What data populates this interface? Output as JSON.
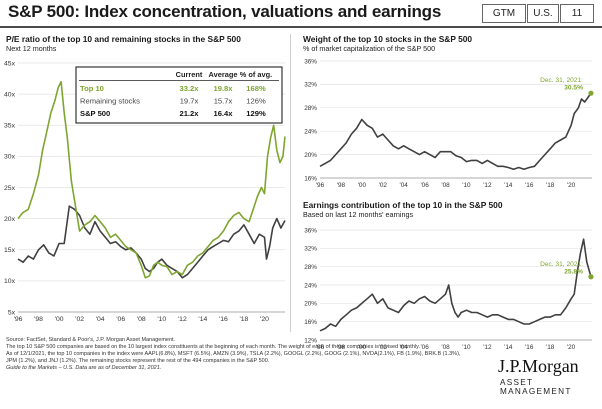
{
  "header": {
    "title": "S&P 500: Index concentration, valuations and earnings",
    "tags": [
      "GTM",
      "U.S.",
      "11"
    ]
  },
  "footnotes": [
    "Source: FactSet, Standard & Poor's, J.P. Morgan Asset Management.",
    "The top 10 S&P 500 companies are based on the 10 largest index constituents at the beginning of each month. The weight of each of these companies is revised monthly.",
    "As of 12/1/2021, the top 10 companies in the index were AAPL(6.8%), MSFT (6.5%), AMZN (3.9%), TSLA (2.2%), GOOGL (2.2%), GOOG (2.1%), NVDA(2.1%), FB (1.9%), BRK.B (1.3%),",
    "JPM (1.2%), and JNJ (1.2%). The remaining stocks represent the rest of the 494 companies in the S&P 500.",
    "Guide to the Markets – U.S. Data are as of December 31, 2021."
  ],
  "brand": {
    "name": "J.P.Morgan",
    "sub": "ASSET MANAGEMENT"
  },
  "colors": {
    "green": "#7ea62f",
    "gray": "#404040",
    "title": "#1a1a1a"
  },
  "chart_data": [
    {
      "type": "line",
      "title": "P/E ratio of the top 10 and remaining stocks in the S&P 500",
      "subtitle": "Next 12 months",
      "xlabel": "",
      "ylabel": "",
      "xlim": [
        1996,
        2022
      ],
      "ylim": [
        5,
        45
      ],
      "yticks": [
        "5x",
        "10x",
        "15x",
        "20x",
        "25x",
        "30x",
        "35x",
        "40x",
        "45x"
      ],
      "xticks": [
        "'96",
        "'98",
        "'00",
        "'02",
        "'04",
        "'06",
        "'08",
        "'10",
        "'12",
        "'14",
        "'16",
        "'18",
        "'20"
      ],
      "series": [
        {
          "name": "Top 10",
          "color": "#7ea62f",
          "x": [
            1996,
            1996.5,
            1997,
            1997.5,
            1998,
            1998.4,
            1998.8,
            1999.2,
            1999.6,
            1999.9,
            2000.2,
            2000.5,
            2000.8,
            2001.2,
            2001.6,
            2002,
            2002.5,
            2003,
            2003.5,
            2004,
            2004.5,
            2005,
            2005.5,
            2006,
            2006.5,
            2007,
            2007.5,
            2008,
            2008.4,
            2008.8,
            2009.2,
            2009.6,
            2010,
            2010.5,
            2011,
            2011.5,
            2012,
            2012.5,
            2013,
            2013.5,
            2014,
            2014.5,
            2015,
            2015.5,
            2016,
            2016.5,
            2017,
            2017.5,
            2018,
            2018.5,
            2019,
            2019.3,
            2019.7,
            2020,
            2020.3,
            2020.6,
            2020.9,
            2021.2,
            2021.5,
            2021.8,
            2022
          ],
          "y": [
            20,
            21,
            21.5,
            24,
            27,
            31,
            34,
            37,
            39,
            41,
            42,
            37,
            33,
            26,
            22,
            18,
            19,
            19.5,
            20.5,
            19.5,
            18.5,
            17,
            17.5,
            16.5,
            15.5,
            15,
            14.5,
            12.5,
            10.5,
            10.8,
            12.5,
            13,
            12.5,
            12.3,
            11,
            11.5,
            11,
            12.5,
            13,
            14,
            14.5,
            15.5,
            16.5,
            17,
            18,
            19.5,
            20.5,
            21,
            20,
            19.5,
            22,
            23.5,
            25,
            24,
            30,
            33,
            35,
            31,
            29,
            30,
            33.2
          ]
        },
        {
          "name": "Remaining stocks",
          "color": "#404040",
          "x": [
            1996,
            1996.5,
            1997,
            1997.5,
            1998,
            1998.5,
            1999,
            1999.5,
            2000,
            2000.5,
            2001,
            2001.5,
            2002,
            2002.5,
            2003,
            2003.5,
            2004,
            2004.5,
            2005,
            2005.5,
            2006,
            2006.5,
            2007,
            2007.5,
            2008,
            2008.4,
            2008.8,
            2009.2,
            2009.6,
            2010,
            2010.5,
            2011,
            2011.5,
            2012,
            2012.5,
            2013,
            2013.5,
            2014,
            2014.5,
            2015,
            2015.5,
            2016,
            2016.5,
            2017,
            2017.5,
            2018,
            2018.5,
            2019,
            2019.5,
            2020,
            2020.2,
            2020.5,
            2020.8,
            2021.2,
            2021.6,
            2022
          ],
          "y": [
            13.5,
            13,
            14,
            13.5,
            15,
            15.8,
            14.5,
            14,
            16,
            16,
            22,
            21.5,
            20.5,
            18.5,
            17.5,
            19.5,
            18,
            17,
            16,
            16.3,
            15.5,
            15,
            15.3,
            14.5,
            13.5,
            12,
            11.5,
            12,
            13,
            13.5,
            12.5,
            12,
            11.5,
            10.5,
            11,
            12,
            13,
            14,
            15,
            15.5,
            16,
            16.5,
            16.3,
            17.5,
            18,
            19,
            17.5,
            16,
            17.5,
            17,
            13.5,
            15.5,
            18.5,
            20,
            18.5,
            19.7
          ]
        }
      ],
      "table": {
        "headers": [
          "",
          "Current",
          "Average",
          "% of avg."
        ],
        "rows": [
          {
            "label": "Top 10",
            "current": "33.2x",
            "average": "19.8x",
            "pct": "168%"
          },
          {
            "label": "Remaining stocks",
            "current": "19.7x",
            "average": "15.7x",
            "pct": "126%"
          },
          {
            "label": "S&P 500",
            "current": "21.2x",
            "average": "16.4x",
            "pct": "129%"
          }
        ]
      }
    },
    {
      "type": "line",
      "title": "Weight of the top 10 stocks in the S&P 500",
      "subtitle": "% of market capitalization of the S&P 500",
      "xlabel": "",
      "ylabel": "",
      "xlim": [
        1996,
        2022
      ],
      "ylim": [
        16,
        36
      ],
      "yticks": [
        "16%",
        "20%",
        "24%",
        "28%",
        "32%",
        "36%"
      ],
      "xticks": [
        "'96",
        "'98",
        "'00",
        "'02",
        "'04",
        "'06",
        "'08",
        "'10",
        "'12",
        "'14",
        "'16",
        "'18",
        "'20"
      ],
      "annotation": {
        "label": "Dec. 31, 2021:",
        "value": "30.5%",
        "x": 2021.9,
        "y": 30.5
      },
      "series": [
        {
          "name": "",
          "color": "#404040",
          "x": [
            1996,
            1996.5,
            1997,
            1997.5,
            1998,
            1998.5,
            1999,
            1999.5,
            2000,
            2000.5,
            2001,
            2001.5,
            2002,
            2002.5,
            2003,
            2003.5,
            2004,
            2004.5,
            2005,
            2005.5,
            2006,
            2006.5,
            2007,
            2007.5,
            2008,
            2008.5,
            2009,
            2009.5,
            2010,
            2010.5,
            2011,
            2011.5,
            2012,
            2012.5,
            2013,
            2013.5,
            2014,
            2014.5,
            2015,
            2015.5,
            2016,
            2016.5,
            2017,
            2017.5,
            2018,
            2018.5,
            2019,
            2019.5,
            2020,
            2020.3,
            2020.7,
            2021,
            2021.3,
            2021.7,
            2021.9
          ],
          "y": [
            18,
            18.5,
            19,
            20,
            21,
            22,
            23.5,
            24.5,
            26,
            25,
            24.5,
            23,
            23.5,
            22.5,
            21.5,
            21,
            21.5,
            21,
            20.5,
            20,
            20.5,
            20,
            19.5,
            20.5,
            20.5,
            20.5,
            19.8,
            19.5,
            18.8,
            19,
            19,
            18.5,
            19,
            18.5,
            18,
            18,
            17.8,
            17.5,
            17.8,
            17.5,
            17.8,
            18,
            19,
            20,
            21,
            22,
            22.5,
            23,
            25,
            27,
            28,
            29.5,
            29,
            30,
            30.5
          ]
        }
      ]
    },
    {
      "type": "line",
      "title": "Earnings contribution of the top 10 in the S&P 500",
      "subtitle": "Based on last 12 months' earnings",
      "xlabel": "",
      "ylabel": "",
      "xlim": [
        1996,
        2022
      ],
      "ylim": [
        12,
        36
      ],
      "yticks": [
        "12%",
        "16%",
        "20%",
        "24%",
        "28%",
        "32%",
        "36%"
      ],
      "xticks": [
        "'96",
        "'98",
        "'00",
        "'02",
        "'04",
        "'06",
        "'08",
        "'10",
        "'12",
        "'14",
        "'16",
        "'18",
        "'20"
      ],
      "annotation": {
        "label": "Dec. 31, 2021:",
        "value": "25.8%",
        "x": 2021.9,
        "y": 25.8
      },
      "series": [
        {
          "name": "",
          "color": "#404040",
          "x": [
            1996,
            1996.5,
            1997,
            1997.5,
            1998,
            1998.5,
            1999,
            1999.5,
            2000,
            2000.5,
            2001,
            2001.5,
            2002,
            2002.5,
            2003,
            2003.5,
            2004,
            2004.5,
            2005,
            2005.5,
            2006,
            2006.5,
            2007,
            2007.5,
            2008,
            2008.3,
            2008.6,
            2008.9,
            2009.2,
            2009.5,
            2010,
            2010.5,
            2011,
            2011.5,
            2012,
            2012.5,
            2013,
            2013.5,
            2014,
            2014.5,
            2015,
            2015.5,
            2016,
            2016.5,
            2017,
            2017.5,
            2018,
            2018.5,
            2019,
            2019.5,
            2020,
            2020.3,
            2020.6,
            2020.9,
            2021.2,
            2021.5,
            2021.9
          ],
          "y": [
            14,
            14.5,
            15.5,
            15,
            16.5,
            17.5,
            18.5,
            19,
            20,
            21,
            22,
            20,
            21,
            19,
            18.5,
            18,
            19.5,
            20.5,
            20,
            21,
            21.5,
            20.5,
            20,
            21,
            22,
            24,
            20,
            18,
            17,
            18,
            18.5,
            18,
            18,
            17.5,
            17,
            17.5,
            17.5,
            17,
            16.5,
            16.5,
            16,
            15.5,
            15.5,
            16,
            16.5,
            17,
            17,
            17.5,
            17.5,
            19,
            21,
            22,
            27,
            31,
            34,
            29,
            25.8
          ]
        }
      ]
    }
  ]
}
